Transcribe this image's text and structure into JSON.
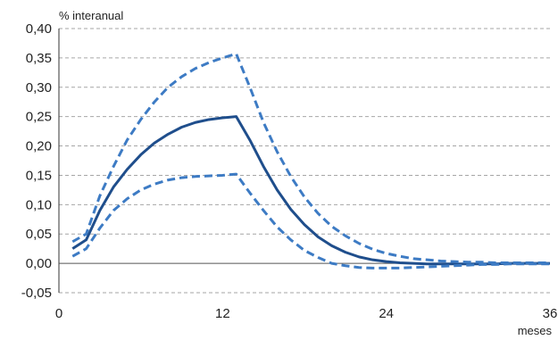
{
  "chart_data": {
    "type": "line",
    "ylabel": "% interanual",
    "xlabel": "meses",
    "xlim": [
      0,
      36
    ],
    "ylim": [
      -0.05,
      0.4
    ],
    "x_ticks": [
      "0",
      "12",
      "24",
      "36"
    ],
    "x_tick_values": [
      0,
      12,
      24,
      36
    ],
    "y_ticks": [
      "0,40",
      "0,35",
      "0,30",
      "0,25",
      "0,20",
      "0,15",
      "0,10",
      "0,05",
      "0,00",
      "-0,05"
    ],
    "y_tick_values": [
      0.4,
      0.35,
      0.3,
      0.25,
      0.2,
      0.15,
      0.1,
      0.05,
      0.0,
      -0.05
    ],
    "grid": "horizontal-dashed",
    "x": [
      1,
      2,
      3,
      4,
      5,
      6,
      7,
      8,
      9,
      10,
      11,
      12,
      13,
      14,
      15,
      16,
      17,
      18,
      19,
      20,
      21,
      22,
      23,
      24,
      25,
      26,
      27,
      28,
      29,
      30,
      31,
      32,
      33,
      34,
      35,
      36
    ],
    "series": [
      {
        "style": "solid",
        "color": "#1f4e8c",
        "values": [
          0.025,
          0.04,
          0.09,
          0.13,
          0.16,
          0.185,
          0.205,
          0.22,
          0.232,
          0.24,
          0.245,
          0.248,
          0.25,
          0.21,
          0.165,
          0.125,
          0.092,
          0.066,
          0.045,
          0.03,
          0.019,
          0.011,
          0.006,
          0.003,
          0.001,
          0.0,
          -0.001,
          -0.001,
          -0.001,
          -0.001,
          -0.001,
          -0.001,
          0.0,
          0.0,
          0.0,
          0.0
        ]
      },
      {
        "style": "dashed",
        "color": "#3d7bc4",
        "values": [
          0.037,
          0.05,
          0.115,
          0.165,
          0.21,
          0.245,
          0.275,
          0.3,
          0.318,
          0.332,
          0.342,
          0.35,
          0.357,
          0.3,
          0.24,
          0.19,
          0.148,
          0.113,
          0.085,
          0.063,
          0.047,
          0.034,
          0.024,
          0.017,
          0.012,
          0.008,
          0.006,
          0.004,
          0.003,
          0.002,
          0.002,
          0.001,
          0.001,
          0.001,
          0.001,
          0.001
        ]
      },
      {
        "style": "dashed",
        "color": "#3d7bc4",
        "values": [
          0.012,
          0.025,
          0.06,
          0.09,
          0.11,
          0.125,
          0.135,
          0.142,
          0.146,
          0.148,
          0.149,
          0.15,
          0.152,
          0.12,
          0.09,
          0.062,
          0.04,
          0.022,
          0.01,
          0.0,
          -0.004,
          -0.007,
          -0.008,
          -0.008,
          -0.008,
          -0.007,
          -0.006,
          -0.005,
          -0.004,
          -0.003,
          -0.002,
          -0.002,
          -0.001,
          -0.001,
          -0.001,
          -0.001
        ]
      }
    ]
  }
}
